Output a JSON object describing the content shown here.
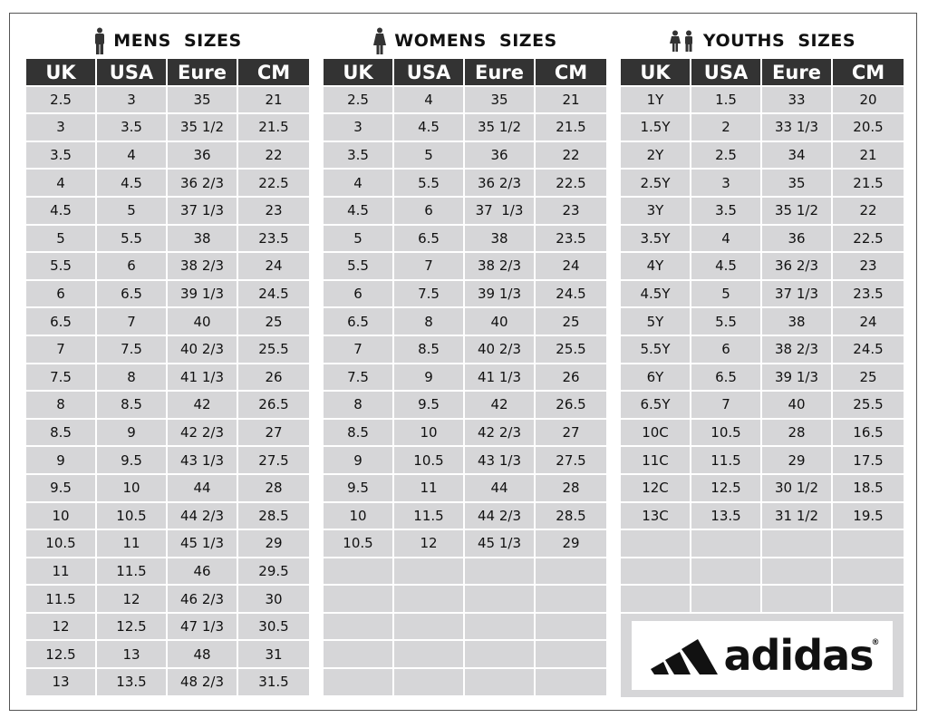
{
  "columns": [
    "UK",
    "USA",
    "Eure",
    "CM"
  ],
  "sections": [
    {
      "title": "MENS  SIZES",
      "icon": "man-icon",
      "rows": [
        [
          "2.5",
          "3",
          "35",
          "21"
        ],
        [
          "3",
          "3.5",
          "35 1/2",
          "21.5"
        ],
        [
          "3.5",
          "4",
          "36",
          "22"
        ],
        [
          "4",
          "4.5",
          "36 2/3",
          "22.5"
        ],
        [
          "4.5",
          "5",
          "37 1/3",
          "23"
        ],
        [
          "5",
          "5.5",
          "38",
          "23.5"
        ],
        [
          "5.5",
          "6",
          "38 2/3",
          "24"
        ],
        [
          "6",
          "6.5",
          "39 1/3",
          "24.5"
        ],
        [
          "6.5",
          "7",
          "40",
          "25"
        ],
        [
          "7",
          "7.5",
          "40 2/3",
          "25.5"
        ],
        [
          "7.5",
          "8",
          "41 1/3",
          "26"
        ],
        [
          "8",
          "8.5",
          "42",
          "26.5"
        ],
        [
          "8.5",
          "9",
          "42 2/3",
          "27"
        ],
        [
          "9",
          "9.5",
          "43 1/3",
          "27.5"
        ],
        [
          "9.5",
          "10",
          "44",
          "28"
        ],
        [
          "10",
          "10.5",
          "44 2/3",
          "28.5"
        ],
        [
          "10.5",
          "11",
          "45 1/3",
          "29"
        ],
        [
          "11",
          "11.5",
          "46",
          "29.5"
        ],
        [
          "11.5",
          "12",
          "46 2/3",
          "30"
        ],
        [
          "12",
          "12.5",
          "47 1/3",
          "30.5"
        ],
        [
          "12.5",
          "13",
          "48",
          "31"
        ],
        [
          "13",
          "13.5",
          "48 2/3",
          "31.5"
        ]
      ],
      "empty_rows": 0
    },
    {
      "title": "WOMENS  SIZES",
      "icon": "woman-icon",
      "rows": [
        [
          "2.5",
          "4",
          "35",
          "21"
        ],
        [
          "3",
          "4.5",
          "35 1/2",
          "21.5"
        ],
        [
          "3.5",
          "5",
          "36",
          "22"
        ],
        [
          "4",
          "5.5",
          "36 2/3",
          "22.5"
        ],
        [
          "4.5",
          "6",
          "37  1/3",
          "23"
        ],
        [
          "5",
          "6.5",
          "38",
          "23.5"
        ],
        [
          "5.5",
          "7",
          "38 2/3",
          "24"
        ],
        [
          "6",
          "7.5",
          "39 1/3",
          "24.5"
        ],
        [
          "6.5",
          "8",
          "40",
          "25"
        ],
        [
          "7",
          "8.5",
          "40 2/3",
          "25.5"
        ],
        [
          "7.5",
          "9",
          "41 1/3",
          "26"
        ],
        [
          "8",
          "9.5",
          "42",
          "26.5"
        ],
        [
          "8.5",
          "10",
          "42 2/3",
          "27"
        ],
        [
          "9",
          "10.5",
          "43 1/3",
          "27.5"
        ],
        [
          "9.5",
          "11",
          "44",
          "28"
        ],
        [
          "10",
          "11.5",
          "44 2/3",
          "28.5"
        ],
        [
          "10.5",
          "12",
          "45 1/3",
          "29"
        ]
      ],
      "empty_rows": 5
    },
    {
      "title": "YOUTHS  SIZES",
      "icon": "children-icon",
      "rows": [
        [
          "1Y",
          "1.5",
          "33",
          "20"
        ],
        [
          "1.5Y",
          "2",
          "33 1/3",
          "20.5"
        ],
        [
          "2Y",
          "2.5",
          "34",
          "21"
        ],
        [
          "2.5Y",
          "3",
          "35",
          "21.5"
        ],
        [
          "3Y",
          "3.5",
          "35 1/2",
          "22"
        ],
        [
          "3.5Y",
          "4",
          "36",
          "22.5"
        ],
        [
          "4Y",
          "4.5",
          "36 2/3",
          "23"
        ],
        [
          "4.5Y",
          "5",
          "37 1/3",
          "23.5"
        ],
        [
          "5Y",
          "5.5",
          "38",
          "24"
        ],
        [
          "5.5Y",
          "6",
          "38 2/3",
          "24.5"
        ],
        [
          "6Y",
          "6.5",
          "39 1/3",
          "25"
        ],
        [
          "6.5Y",
          "7",
          "40",
          "25.5"
        ],
        [
          "10C",
          "10.5",
          "28",
          "16.5"
        ],
        [
          "11C",
          "11.5",
          "29",
          "17.5"
        ],
        [
          "12C",
          "12.5",
          "30 1/2",
          "18.5"
        ],
        [
          "13C",
          "13.5",
          "31 1/2",
          "19.5"
        ]
      ],
      "empty_rows": 3
    }
  ],
  "logo": {
    "text": "adidas",
    "mark": "®"
  },
  "colors": {
    "header_bg": "#333333",
    "cell_bg": "#d6d6d8",
    "text": "#111111"
  }
}
